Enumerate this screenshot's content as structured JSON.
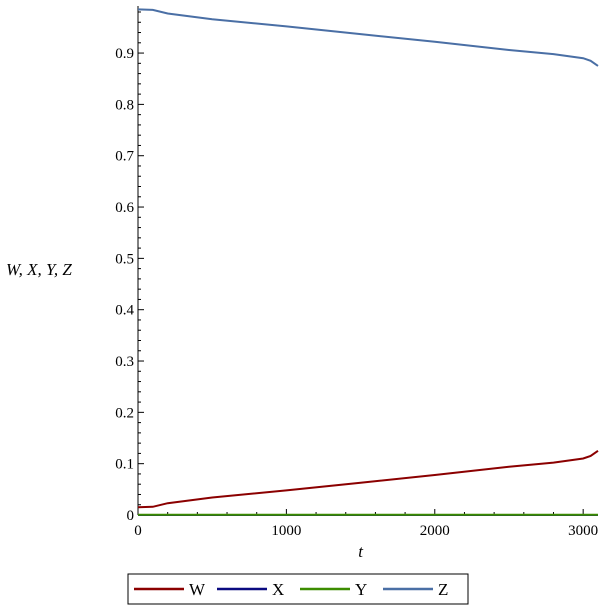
{
  "chart_data": {
    "type": "line",
    "title": "",
    "xlabel": "t",
    "ylabel": "W, X, Y, Z",
    "xlim": [
      0,
      3100
    ],
    "ylim": [
      0,
      0.98
    ],
    "xticks": [
      0,
      1000,
      2000,
      3000
    ],
    "xtick_labels": [
      "0",
      "1000",
      "2000",
      "3000"
    ],
    "yticks": [
      0,
      0.1,
      0.2,
      0.3,
      0.4,
      0.5,
      0.6,
      0.7,
      0.8,
      0.9
    ],
    "ytick_labels": [
      "0",
      "0.1",
      "0.2",
      "0.3",
      "0.4",
      "0.5",
      "0.6",
      "0.7",
      "0.8",
      "0.9"
    ],
    "grid": false,
    "legend_position": "bottom-center",
    "series": [
      {
        "name": "W",
        "color": "#8b0000",
        "x": [
          0,
          100,
          200,
          500,
          1000,
          1500,
          2000,
          2500,
          2800,
          3000,
          3050,
          3100
        ],
        "y": [
          0.015,
          0.016,
          0.023,
          0.034,
          0.048,
          0.063,
          0.078,
          0.094,
          0.102,
          0.11,
          0.115,
          0.125
        ]
      },
      {
        "name": "X",
        "color": "#0a0a80",
        "x": [
          0,
          3100
        ],
        "y": [
          0.0,
          0.0
        ]
      },
      {
        "name": "Y",
        "color": "#3c8c00",
        "x": [
          0,
          3100
        ],
        "y": [
          0.0005,
          0.0005
        ]
      },
      {
        "name": "Z",
        "color": "#4a6fa5",
        "x": [
          0,
          100,
          200,
          500,
          1000,
          1500,
          2000,
          2500,
          2800,
          3000,
          3050,
          3100
        ],
        "y": [
          0.985,
          0.984,
          0.977,
          0.966,
          0.952,
          0.937,
          0.922,
          0.906,
          0.898,
          0.89,
          0.885,
          0.875
        ]
      }
    ]
  }
}
